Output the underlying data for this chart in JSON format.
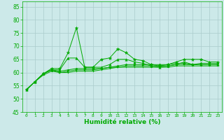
{
  "background_color": "#cce9e9",
  "grid_color": "#aacccc",
  "line_color": "#00aa00",
  "xlabel": "Humidité relative (%)",
  "xlabel_color": "#00aa00",
  "tick_color": "#00aa00",
  "xlim": [
    -0.5,
    23.5
  ],
  "ylim": [
    45,
    87
  ],
  "yticks": [
    45,
    50,
    55,
    60,
    65,
    70,
    75,
    80,
    85
  ],
  "xticks": [
    0,
    1,
    2,
    3,
    4,
    5,
    6,
    7,
    8,
    9,
    10,
    11,
    12,
    13,
    14,
    15,
    16,
    17,
    18,
    19,
    20,
    21,
    22,
    23
  ],
  "lines": [
    {
      "x": [
        0,
        1,
        2,
        3,
        4,
        5,
        6,
        7,
        8,
        9,
        10,
        11,
        12,
        13,
        14,
        15,
        16,
        17,
        18,
        19,
        20,
        21,
        22,
        23
      ],
      "y": [
        53.5,
        56.5,
        59.5,
        61.5,
        61.5,
        67.5,
        77,
        62,
        62,
        65,
        65.5,
        69,
        67.5,
        65,
        64.5,
        63,
        62.5,
        63,
        64,
        65,
        65,
        65,
        64,
        64
      ],
      "marker": "*",
      "markersize": 3.5
    },
    {
      "x": [
        0,
        1,
        2,
        3,
        4,
        5,
        6,
        7,
        8,
        9,
        10,
        11,
        12,
        13,
        14,
        15,
        16,
        17,
        18,
        19,
        20,
        21,
        22,
        23
      ],
      "y": [
        53.5,
        56.5,
        59.5,
        61.0,
        61.0,
        65.5,
        65.5,
        62,
        62,
        62,
        63,
        65,
        65,
        64,
        63.5,
        62.5,
        62,
        62.5,
        63,
        64,
        63,
        63,
        63,
        63
      ],
      "marker": "^",
      "markersize": 2.5
    },
    {
      "x": [
        0,
        1,
        2,
        3,
        4,
        5,
        6,
        7,
        8,
        9,
        10,
        11,
        12,
        13,
        14,
        15,
        16,
        17,
        18,
        19,
        20,
        21,
        22,
        23
      ],
      "y": [
        53.5,
        56.5,
        59.5,
        61.0,
        60.5,
        61.0,
        61.5,
        61.5,
        61.5,
        61.5,
        62,
        62.5,
        63,
        63,
        63,
        63,
        63,
        63,
        63.5,
        63.5,
        63,
        63.5,
        63.5,
        63.5
      ],
      "marker": "D",
      "markersize": 1.5
    },
    {
      "x": [
        0,
        1,
        2,
        3,
        4,
        5,
        6,
        7,
        8,
        9,
        10,
        11,
        12,
        13,
        14,
        15,
        16,
        17,
        18,
        19,
        20,
        21,
        22,
        23
      ],
      "y": [
        53.5,
        56.5,
        59.5,
        61.0,
        60.0,
        60.5,
        61.0,
        61.0,
        61.0,
        61.5,
        62,
        62,
        62.5,
        62.5,
        62.5,
        62.5,
        62.5,
        62.5,
        63,
        63,
        63,
        63,
        63,
        63
      ],
      "marker": "s",
      "markersize": 1.5
    },
    {
      "x": [
        0,
        1,
        2,
        3,
        4,
        5,
        6,
        7,
        8,
        9,
        10,
        11,
        12,
        13,
        14,
        15,
        16,
        17,
        18,
        19,
        20,
        21,
        22,
        23
      ],
      "y": [
        53.5,
        56.5,
        59.0,
        60.5,
        60.0,
        60.0,
        60.5,
        60.5,
        60.5,
        61,
        61.5,
        62,
        62,
        62,
        62,
        62,
        62,
        62,
        62.5,
        62.5,
        62.5,
        62.5,
        62.5,
        62.5
      ],
      "marker": ".",
      "markersize": 1.5
    }
  ]
}
